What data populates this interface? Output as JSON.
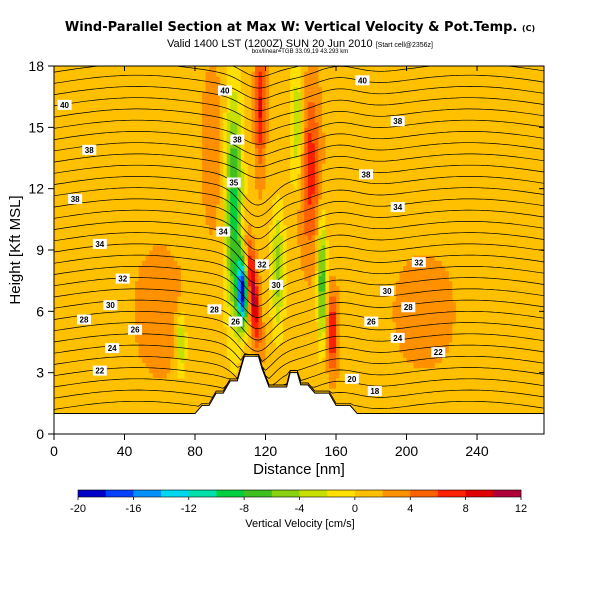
{
  "chart_data": {
    "type": "heatmap",
    "title": "Wind-Parallel Section at Max W: Vertical Velocity & Pot.Temp.",
    "title_mark": "(C)",
    "subtitle": "Valid 1400 LST (1200Z) SUN 20 Jun 2010",
    "subtitle_note": "[Start cell@2356z]",
    "subsubtitle": "box/linear=TGB 33.09,19 43.293 km",
    "xlabel": "Distance [nm]",
    "ylabel": "Height [Kft MSL]",
    "xlim": [
      0,
      278
    ],
    "ylim": [
      0,
      18
    ],
    "x_ticks": [
      0,
      40,
      80,
      120,
      160,
      200,
      240
    ],
    "y_ticks": [
      0,
      3,
      6,
      9,
      12,
      15,
      18
    ],
    "colorbar": {
      "label": "Vertical Velocity [cm/s]",
      "min": -20,
      "max": 12,
      "ticks": [
        -20,
        -16,
        -12,
        -8,
        -4,
        0,
        4,
        8,
        12
      ],
      "colors": [
        "#0000c8",
        "#0040ff",
        "#0090ff",
        "#00d8f0",
        "#00e0a8",
        "#00d040",
        "#40c020",
        "#88d010",
        "#c8e000",
        "#ffe000",
        "#ffc000",
        "#ff9000",
        "#ff6000",
        "#ff2000",
        "#e00000",
        "#b0003a"
      ]
    },
    "terrain_nm_kft": [
      [
        0,
        1.0
      ],
      [
        40,
        1.0
      ],
      [
        70,
        1.0
      ],
      [
        80,
        1.0
      ],
      [
        84,
        1.4
      ],
      [
        88,
        1.4
      ],
      [
        92,
        2.0
      ],
      [
        96,
        2.0
      ],
      [
        100,
        2.6
      ],
      [
        104,
        2.6
      ],
      [
        108,
        3.8
      ],
      [
        116,
        3.8
      ],
      [
        118,
        3.2
      ],
      [
        122,
        2.3
      ],
      [
        132,
        2.3
      ],
      [
        134,
        3.0
      ],
      [
        138,
        3.0
      ],
      [
        140,
        2.4
      ],
      [
        144,
        2.4
      ],
      [
        148,
        2.0
      ],
      [
        156,
        2.0
      ],
      [
        160,
        1.4
      ],
      [
        168,
        1.4
      ],
      [
        172,
        1.0
      ],
      [
        278,
        1.0
      ]
    ],
    "theta_contour_labels": [
      {
        "text": "40",
        "x": 97,
        "y": 16.8
      },
      {
        "text": "40",
        "x": 175,
        "y": 17.3
      },
      {
        "text": "40",
        "x": 6,
        "y": 16.1
      },
      {
        "text": "38",
        "x": 20,
        "y": 13.9
      },
      {
        "text": "38",
        "x": 104,
        "y": 14.4
      },
      {
        "text": "38",
        "x": 195,
        "y": 15.3
      },
      {
        "text": "38",
        "x": 177,
        "y": 12.7
      },
      {
        "text": "38",
        "x": 12,
        "y": 11.5
      },
      {
        "text": "35",
        "x": 102,
        "y": 12.3
      },
      {
        "text": "34",
        "x": 195,
        "y": 11.1
      },
      {
        "text": "34",
        "x": 96,
        "y": 9.9
      },
      {
        "text": "34",
        "x": 26,
        "y": 9.3
      },
      {
        "text": "32",
        "x": 118,
        "y": 8.3
      },
      {
        "text": "32",
        "x": 207,
        "y": 8.4
      },
      {
        "text": "32",
        "x": 39,
        "y": 7.6
      },
      {
        "text": "30",
        "x": 126,
        "y": 7.3
      },
      {
        "text": "30",
        "x": 189,
        "y": 7.0
      },
      {
        "text": "30",
        "x": 32,
        "y": 6.3
      },
      {
        "text": "28",
        "x": 91,
        "y": 6.1
      },
      {
        "text": "28",
        "x": 201,
        "y": 6.2
      },
      {
        "text": "28",
        "x": 17,
        "y": 5.6
      },
      {
        "text": "26",
        "x": 103,
        "y": 5.5
      },
      {
        "text": "26",
        "x": 180,
        "y": 5.5
      },
      {
        "text": "26",
        "x": 46,
        "y": 5.1
      },
      {
        "text": "24",
        "x": 33,
        "y": 4.2
      },
      {
        "text": "24",
        "x": 195,
        "y": 4.7
      },
      {
        "text": "22",
        "x": 26,
        "y": 3.1
      },
      {
        "text": "22",
        "x": 218,
        "y": 4.0
      },
      {
        "text": "20",
        "x": 169,
        "y": 2.7
      },
      {
        "text": "18",
        "x": 182,
        "y": 2.1
      }
    ]
  },
  "labels": {
    "title": "Wind-Parallel Section at Max W: Vertical Velocity & Pot.Temp.",
    "title_mark": "(C)",
    "subtitle": "Valid 1400 LST (1200Z) SUN 20 Jun 2010",
    "subtitle_note": "[Start cell@2356z]",
    "subsubtitle": "box/linear=TGB 33.09,19 43.293 km"
  }
}
